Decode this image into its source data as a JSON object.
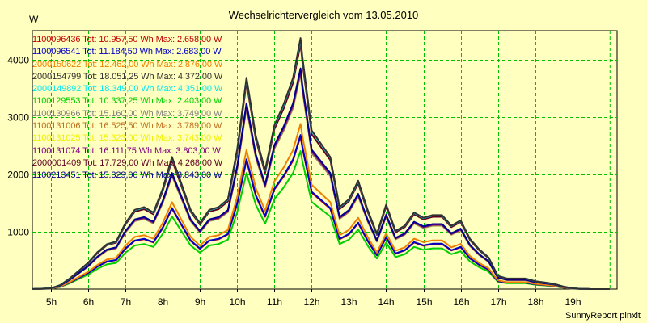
{
  "chart_data": {
    "type": "line",
    "title": "Wechselrichtervergleich vom 13.05.2010",
    "ylabel": "W",
    "xlabel": "",
    "footer": "SunnyReport pinxit",
    "ylim": [
      0,
      4500
    ],
    "xlim": [
      4.5,
      20.2
    ],
    "y_ticks": [
      1000,
      2000,
      3000,
      4000
    ],
    "x_tick_labels": [
      "5h",
      "6h",
      "7h",
      "8h",
      "9h",
      "10h",
      "11h",
      "12h",
      "13h",
      "14h",
      "15h",
      "16h",
      "17h",
      "18h",
      "19h"
    ],
    "grid": true,
    "legend_position": "top-left",
    "colors": {
      "background": "#ffffc0",
      "plot_background": "#ffffc0",
      "grid": "#00c000"
    },
    "x": [
      4.5,
      5,
      5.25,
      5.5,
      5.75,
      6,
      6.25,
      6.5,
      6.75,
      7,
      7.25,
      7.5,
      7.75,
      8,
      8.25,
      8.5,
      8.75,
      9,
      9.25,
      9.5,
      9.75,
      10,
      10.25,
      10.5,
      10.75,
      11,
      11.25,
      11.5,
      11.7,
      11.75,
      12,
      12.25,
      12.5,
      12.75,
      13,
      13.25,
      13.5,
      13.75,
      14,
      14.25,
      14.5,
      14.75,
      15,
      15.25,
      15.5,
      15.75,
      16,
      16.25,
      16.5,
      16.75,
      17,
      17.25,
      17.5,
      17.75,
      18,
      18.25,
      18.5,
      18.75,
      19,
      19.25,
      19.5,
      19.75,
      20
    ],
    "series": [
      {
        "name": "1100096436 Tot: 10.957,50 Wh Max: 2.658,00 W",
        "color": "#c00000",
        "peak": 2658
      },
      {
        "name": "1100096541 Tot: 11.184,50 Wh Max: 2.683,00 W",
        "color": "#0000c8",
        "peak": 2683
      },
      {
        "name": "2000150622 Tot: 12.462,00 Wh Max: 2.876,00 W",
        "color": "#f08000",
        "peak": 2876
      },
      {
        "name": "2000154799 Tot: 18.051,25 Wh Max: 4.372,00 W",
        "color": "#303030",
        "peak": 4372
      },
      {
        "name": "2000149892 Tot: 18.349,00 Wh Max: 4.351,00 W",
        "color": "#00e8f0",
        "peak": 4351
      },
      {
        "name": "1100129553 Tot: 10.337,25 Wh Max: 2.403,00 W",
        "color": "#00d000",
        "peak": 2403
      },
      {
        "name": "1100130966 Tot: 15.160,00 Wh Max: 3.749,00 W",
        "color": "#808080",
        "peak": 3749
      },
      {
        "name": "1100131006 Tot: 16.525,50 Wh Max: 3.789,00 W",
        "color": "#c07020",
        "peak": 3789
      },
      {
        "name": "1100131025 Tot: 15.323,00 Wh Max: 3.743,00 W",
        "color": "#f0f000",
        "peak": 3743
      },
      {
        "name": "1100131074 Tot: 16.111,75 Wh Max: 3.803,00 W",
        "color": "#800080",
        "peak": 3803
      },
      {
        "name": "2000001409 Tot: 17.729,00 Wh Max: 4.268,00 W",
        "color": "#600020",
        "peak": 4268
      },
      {
        "name": "1100213451 Tot: 15.329,00 Wh Max: 3.843,00 W",
        "color": "#000090",
        "peak": 3843
      }
    ],
    "profile": [
      0,
      0.003,
      0.015,
      0.04,
      0.07,
      0.1,
      0.14,
      0.17,
      0.18,
      0.25,
      0.3,
      0.31,
      0.29,
      0.38,
      0.5,
      0.4,
      0.3,
      0.25,
      0.3,
      0.31,
      0.34,
      0.53,
      0.8,
      0.58,
      0.45,
      0.62,
      0.7,
      0.8,
      0.95,
      0.88,
      0.6,
      0.55,
      0.5,
      0.31,
      0.34,
      0.41,
      0.3,
      0.21,
      0.32,
      0.22,
      0.24,
      0.29,
      0.27,
      0.28,
      0.28,
      0.24,
      0.26,
      0.19,
      0.15,
      0.12,
      0.05,
      0.04,
      0.04,
      0.04,
      0.03,
      0.025,
      0.02,
      0.01,
      0.003,
      0.001,
      0,
      0,
      0
    ]
  }
}
